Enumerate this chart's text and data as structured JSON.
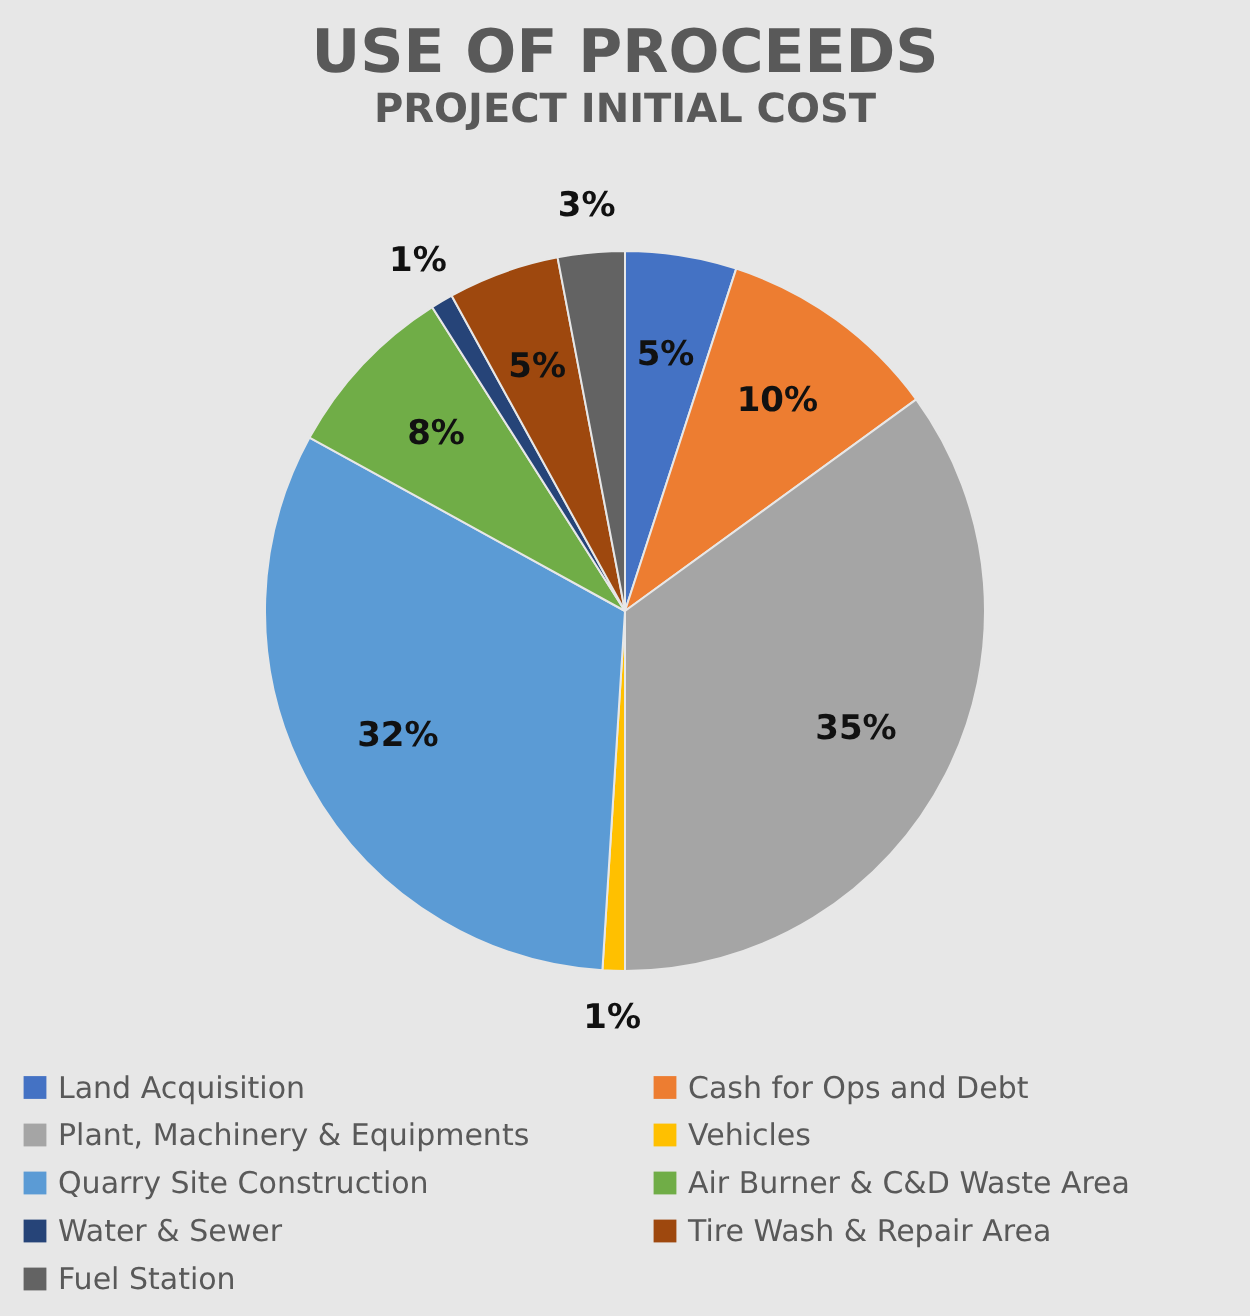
{
  "chart_data": {
    "type": "pie",
    "title": "USE OF PROCEEDS",
    "subtitle": "PROJECT INITIAL COST",
    "categories": [
      "Land Acquisition",
      "Cash for Ops and Debt",
      "Plant, Machinery & Equipments",
      "Vehicles",
      "Quarry Site Construction",
      "Air Burner & C&D Waste Area",
      "Water & Sewer",
      "Tire Wash & Repair Area",
      "Fuel Station"
    ],
    "values": [
      5,
      10,
      35,
      1,
      32,
      8,
      1,
      5,
      3
    ],
    "value_labels": [
      "5%",
      "10%",
      "35%",
      "1%",
      "32%",
      "8%",
      "1%",
      "5%",
      "3%"
    ],
    "colors": [
      "#4472c4",
      "#ed7d31",
      "#a5a5a5",
      "#ffc000",
      "#5b9bd5",
      "#70ad47",
      "#264478",
      "#9e480e",
      "#636363"
    ],
    "legend": "bottom"
  }
}
